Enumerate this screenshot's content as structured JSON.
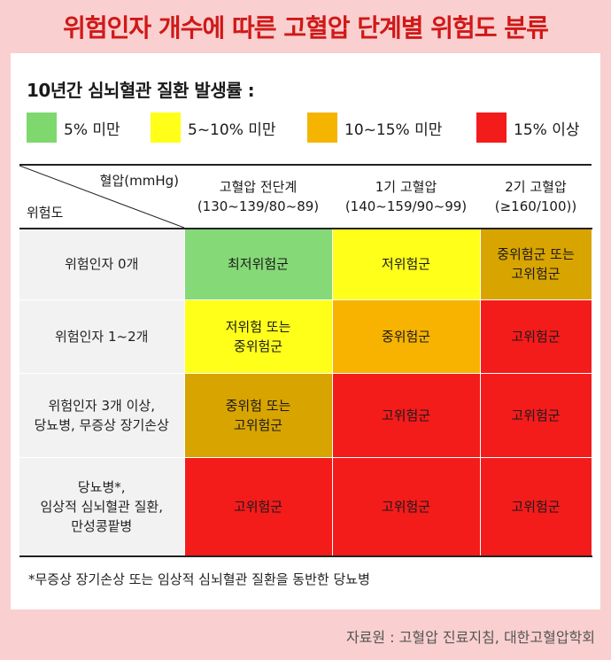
{
  "title": "위험인자 개수에 따른 고혈압 단계별 위험도 분류",
  "legend": {
    "title": "10년간 심뇌혈관 질환 발생률 :",
    "items": [
      {
        "label": "5% 미만",
        "color": "#7ed86e"
      },
      {
        "label": "5~10% 미만",
        "color": "#ffff1a"
      },
      {
        "label": "10~15% 미만",
        "color": "#f5b400"
      },
      {
        "label": "15% 이상",
        "color": "#f41b1b"
      }
    ]
  },
  "table": {
    "corner_top": "혈압(mmHg)",
    "corner_bottom": "위험도",
    "columns": [
      {
        "name": "고혈압 전단계",
        "range": "(130~139/80~89)"
      },
      {
        "name": "1기 고혈압",
        "range": "(140~159/90~99)"
      },
      {
        "name": "2기 고혈압",
        "range": "(≥160/100))"
      }
    ],
    "rows": [
      {
        "head": [
          "위험인자 0개"
        ],
        "cells": [
          {
            "text": [
              "최저위험군"
            ],
            "color": "#86d977"
          },
          {
            "text": [
              "저위험군"
            ],
            "color": "#ffff1a"
          },
          {
            "text": [
              "중위험군 또는",
              "고위험군"
            ],
            "color": "#d8a400"
          }
        ]
      },
      {
        "head": [
          "위험인자 1~2개"
        ],
        "cells": [
          {
            "text": [
              "저위험 또는",
              "중위험군"
            ],
            "color": "#ffff1a"
          },
          {
            "text": [
              "중위험군"
            ],
            "color": "#f7b300"
          },
          {
            "text": [
              "고위험군"
            ],
            "color": "#f41b1b"
          }
        ]
      },
      {
        "head": [
          "위험인자 3개 이상,",
          "당뇨병, 무증상 장기손상"
        ],
        "cells": [
          {
            "text": [
              "중위험 또는",
              "고위험군"
            ],
            "color": "#d8a400"
          },
          {
            "text": [
              "고위험군"
            ],
            "color": "#f41b1b"
          },
          {
            "text": [
              "고위험군"
            ],
            "color": "#f41b1b"
          }
        ]
      },
      {
        "head": [
          "당뇨병*,",
          "임상적 심뇌혈관 질환,",
          "만성콩팥병"
        ],
        "cells": [
          {
            "text": [
              "고위험군"
            ],
            "color": "#f41b1b"
          },
          {
            "text": [
              "고위험군"
            ],
            "color": "#f41b1b"
          },
          {
            "text": [
              "고위험군"
            ],
            "color": "#f41b1b"
          }
        ]
      }
    ]
  },
  "footnote": "*무증상 장기손상 또는 임상적 심뇌혈관 질환을 동반한 당뇨병",
  "source": "자료원 : 고혈압 진료지침, 대한고혈압학회"
}
